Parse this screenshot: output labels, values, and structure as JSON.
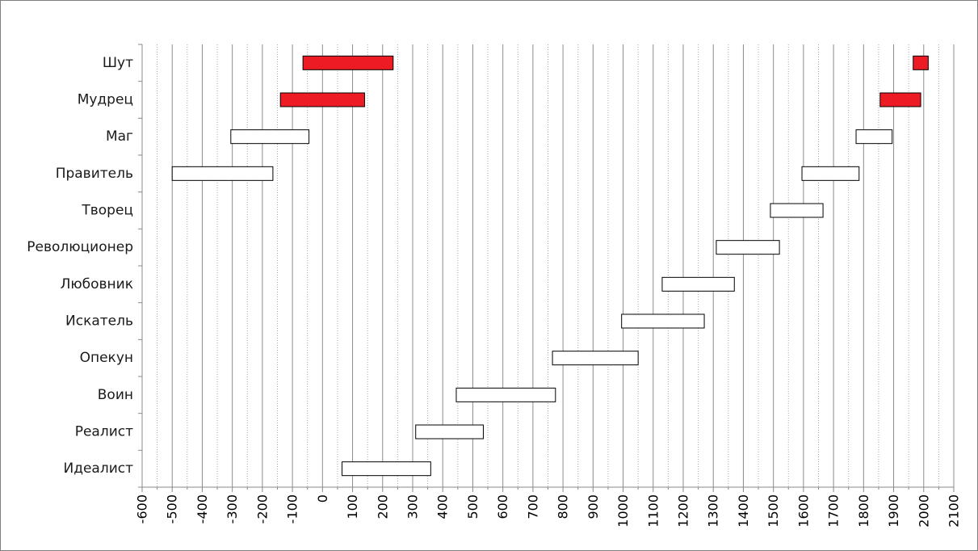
{
  "chart_data": {
    "type": "bar",
    "subtype": "floating-horizontal-bar",
    "title": "",
    "xlabel": "",
    "ylabel": "",
    "xlim": [
      -600,
      2100
    ],
    "x_ticks": [
      -600,
      -500,
      -400,
      -300,
      -200,
      -100,
      0,
      100,
      200,
      300,
      400,
      500,
      600,
      700,
      800,
      900,
      1000,
      1100,
      1200,
      1300,
      1400,
      1500,
      1600,
      1700,
      1800,
      1900,
      2000,
      2100
    ],
    "grid": "vertical major solid, minor dotted every 50",
    "categories": [
      "Шут",
      "Мудрец",
      "Маг",
      "Правитель",
      "Творец",
      "Революционер",
      "Любовник",
      "Искатель",
      "Опекун",
      "Воин",
      "Реалист",
      "Идеалист"
    ],
    "series": [
      {
        "ranges": [
          {
            "category": "Шут",
            "start": -65,
            "end": 235,
            "highlight": true
          },
          {
            "category": "Шут",
            "start": 1965,
            "end": 2015,
            "highlight": true
          },
          {
            "category": "Мудрец",
            "start": -140,
            "end": 140,
            "highlight": true
          },
          {
            "category": "Мудрец",
            "start": 1855,
            "end": 1990,
            "highlight": true
          },
          {
            "category": "Маг",
            "start": -305,
            "end": -45,
            "highlight": false
          },
          {
            "category": "Маг",
            "start": 1775,
            "end": 1895,
            "highlight": false
          },
          {
            "category": "Правитель",
            "start": -500,
            "end": -165,
            "highlight": false
          },
          {
            "category": "Правитель",
            "start": 1595,
            "end": 1785,
            "highlight": false
          },
          {
            "category": "Творец",
            "start": 1490,
            "end": 1665,
            "highlight": false
          },
          {
            "category": "Революционер",
            "start": 1310,
            "end": 1520,
            "highlight": false
          },
          {
            "category": "Любовник",
            "start": 1130,
            "end": 1370,
            "highlight": false
          },
          {
            "category": "Искатель",
            "start": 995,
            "end": 1270,
            "highlight": false
          },
          {
            "category": "Опекун",
            "start": 765,
            "end": 1050,
            "highlight": false
          },
          {
            "category": "Воин",
            "start": 445,
            "end": 775,
            "highlight": false
          },
          {
            "category": "Реалист",
            "start": 310,
            "end": 535,
            "highlight": false
          },
          {
            "category": "Идеалист",
            "start": 65,
            "end": 360,
            "highlight": false
          }
        ]
      }
    ],
    "colors": {
      "highlight": "#ed1c24",
      "normal": "#ffffff",
      "stroke": "#000000",
      "grid_major": "#8c8c8c",
      "grid_minor": "#a8a8a8"
    }
  }
}
